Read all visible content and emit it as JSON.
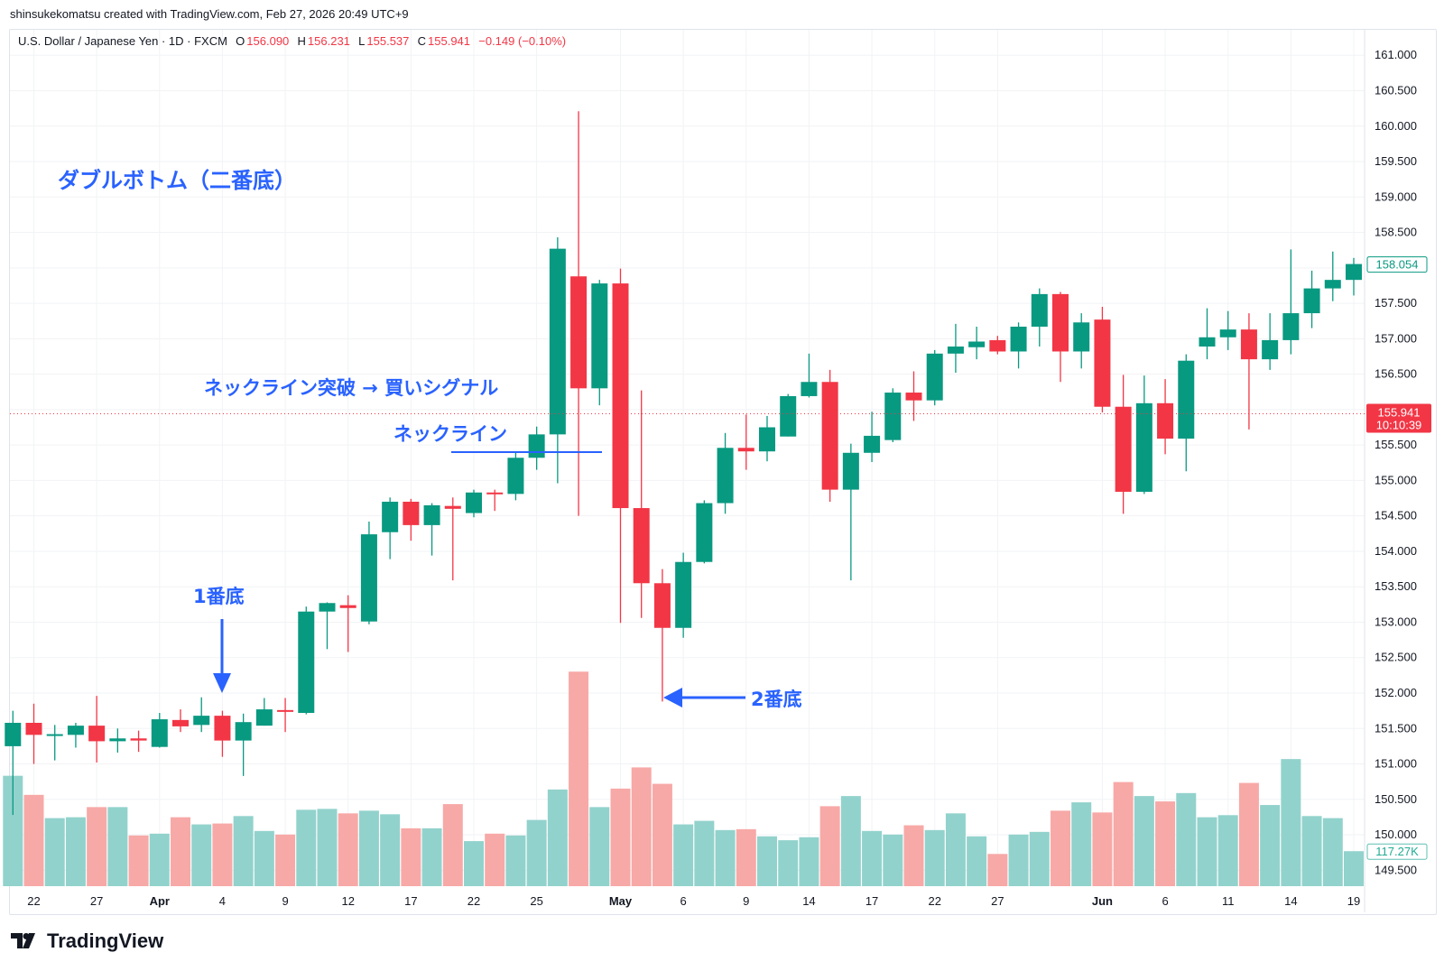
{
  "credit": "shinsukekomatsu created with TradingView.com, Feb 27, 2026 20:49 UTC+9",
  "legend": {
    "symbol": "U.S. Dollar / Japanese Yen · 1D · FXCM",
    "open_label": "O",
    "open": "156.090",
    "high_label": "H",
    "high": "156.231",
    "low_label": "L",
    "low": "155.537",
    "close_label": "C",
    "close": "155.941",
    "change": "−0.149 (−0.10%)"
  },
  "annotations": {
    "title": "ダブルボトム（二番底）",
    "breakout": "ネックライン突破 → 買いシグナル",
    "neckline": "ネックライン",
    "first_bottom": "1番底",
    "second_bottom": "2番底"
  },
  "logo": "TradingView",
  "colors": {
    "up": "#089981",
    "down": "#f23645",
    "vol_up": "#92d2cc",
    "vol_down": "#f7a9a7",
    "annotation": "#2962ff"
  },
  "chart_data": {
    "type": "candlestick",
    "price_axis": {
      "min": 149.5,
      "max": 161.0,
      "step": 0.5,
      "labels": [
        "161.000",
        "160.500",
        "160.000",
        "159.500",
        "159.000",
        "158.500",
        "158.000",
        "157.500",
        "157.000",
        "156.500",
        "156.000",
        "155.500",
        "155.000",
        "154.500",
        "154.000",
        "153.500",
        "153.000",
        "152.500",
        "152.000",
        "151.500",
        "151.000",
        "150.500",
        "150.000",
        "149.500"
      ]
    },
    "last_price_label": "158.054",
    "current_price": {
      "value": "155.941",
      "countdown": "10:10:39"
    },
    "last_volume_label": "117.27K",
    "neckline_price": 155.4,
    "grid": true,
    "x_ticks": [
      {
        "date": "Mar 22",
        "label": "22",
        "bold": false
      },
      {
        "date": "Mar 27",
        "label": "27",
        "bold": false
      },
      {
        "date": "Apr 1",
        "label": "Apr",
        "bold": true
      },
      {
        "date": "Apr 4",
        "label": "4",
        "bold": false
      },
      {
        "date": "Apr 9",
        "label": "9",
        "bold": false
      },
      {
        "date": "Apr 12",
        "label": "12",
        "bold": false
      },
      {
        "date": "Apr 17",
        "label": "17",
        "bold": false
      },
      {
        "date": "Apr 22",
        "label": "22",
        "bold": false
      },
      {
        "date": "Apr 25",
        "label": "25",
        "bold": false
      },
      {
        "date": "May 1",
        "label": "May",
        "bold": true
      },
      {
        "date": "May 6",
        "label": "6",
        "bold": false
      },
      {
        "date": "May 9",
        "label": "9",
        "bold": false
      },
      {
        "date": "May 14",
        "label": "14",
        "bold": false
      },
      {
        "date": "May 17",
        "label": "17",
        "bold": false
      },
      {
        "date": "May 22",
        "label": "22",
        "bold": false
      },
      {
        "date": "May 27",
        "label": "27",
        "bold": false
      },
      {
        "date": "Jun 3",
        "label": "Jun",
        "bold": true
      },
      {
        "date": "Jun 6",
        "label": "6",
        "bold": false
      },
      {
        "date": "Jun 11",
        "label": "11",
        "bold": false
      },
      {
        "date": "Jun 14",
        "label": "14",
        "bold": false
      },
      {
        "date": "Jun 19",
        "label": "19",
        "bold": false
      }
    ],
    "columns": [
      "date",
      "open",
      "high",
      "low",
      "close",
      "volume_k"
    ],
    "candles": [
      [
        "Mar 21",
        151.25,
        151.75,
        150.28,
        151.58,
        370
      ],
      [
        "Mar 22",
        151.58,
        151.85,
        151.0,
        151.41,
        306
      ],
      [
        "Mar 25",
        151.4,
        151.55,
        151.05,
        151.42,
        228
      ],
      [
        "Mar 26",
        151.41,
        151.58,
        151.23,
        151.54,
        231
      ],
      [
        "Mar 27",
        151.54,
        151.96,
        151.02,
        151.32,
        265
      ],
      [
        "Mar 28",
        151.32,
        151.5,
        151.16,
        151.36,
        265
      ],
      [
        "Mar 29",
        151.36,
        151.47,
        151.17,
        151.33,
        170
      ],
      [
        "Apr 1",
        151.24,
        151.72,
        151.23,
        151.63,
        176
      ],
      [
        "Apr 2",
        151.62,
        151.77,
        151.45,
        151.53,
        231
      ],
      [
        "Apr 3",
        151.55,
        151.94,
        151.45,
        151.68,
        207
      ],
      [
        "Apr 4",
        151.68,
        151.75,
        151.1,
        151.33,
        210
      ],
      [
        "Apr 5",
        151.33,
        151.71,
        150.83,
        151.59,
        235
      ],
      [
        "Apr 8",
        151.54,
        151.93,
        151.54,
        151.77,
        185
      ],
      [
        "Apr 9",
        151.76,
        151.93,
        151.45,
        151.74,
        173
      ],
      [
        "Apr 10",
        151.72,
        153.22,
        151.7,
        153.15,
        256
      ],
      [
        "Apr 11",
        153.15,
        153.28,
        152.62,
        153.27,
        259
      ],
      [
        "Apr 12",
        153.24,
        153.38,
        152.58,
        153.2,
        244
      ],
      [
        "Apr 15",
        153.01,
        154.42,
        152.97,
        154.24,
        253
      ],
      [
        "Apr 16",
        154.27,
        154.76,
        153.89,
        154.7,
        241
      ],
      [
        "Apr 17",
        154.7,
        154.74,
        154.15,
        154.37,
        194
      ],
      [
        "Apr 18",
        154.37,
        154.68,
        153.94,
        154.65,
        194
      ],
      [
        "Apr 19",
        154.64,
        154.76,
        153.59,
        154.6,
        275
      ],
      [
        "Apr 22",
        154.54,
        154.87,
        154.48,
        154.83,
        151
      ],
      [
        "Apr 23",
        154.83,
        154.87,
        154.57,
        154.81,
        176
      ],
      [
        "Apr 24",
        154.81,
        155.4,
        154.72,
        155.32,
        170
      ],
      [
        "Apr 25",
        155.32,
        155.76,
        155.15,
        155.65,
        222
      ],
      [
        "Apr 26",
        155.65,
        158.43,
        154.96,
        158.27,
        324
      ],
      [
        "Apr 29",
        157.88,
        160.21,
        154.5,
        156.3,
        719
      ],
      [
        "Apr 30",
        156.3,
        157.83,
        156.06,
        157.78,
        265
      ],
      [
        "May 1",
        157.78,
        157.99,
        152.99,
        154.61,
        327
      ],
      [
        "May 2",
        154.61,
        156.27,
        153.06,
        153.55,
        398
      ],
      [
        "May 3",
        153.55,
        153.75,
        151.88,
        152.92,
        343
      ],
      [
        "May 6",
        152.92,
        153.98,
        152.78,
        153.85,
        207
      ],
      [
        "May 7",
        153.85,
        154.72,
        153.83,
        154.68,
        219
      ],
      [
        "May 8",
        154.68,
        155.67,
        154.53,
        155.46,
        188
      ],
      [
        "May 9",
        155.46,
        155.93,
        155.15,
        155.41,
        191
      ],
      [
        "May 10",
        155.41,
        155.91,
        155.27,
        155.75,
        167
      ],
      [
        "May 13",
        155.62,
        156.22,
        155.62,
        156.19,
        154
      ],
      [
        "May 14",
        156.19,
        156.79,
        156.17,
        156.39,
        164
      ],
      [
        "May 15",
        156.39,
        156.56,
        154.7,
        154.87,
        268
      ],
      [
        "May 16",
        154.87,
        155.52,
        153.59,
        155.39,
        302
      ],
      [
        "May 17",
        155.39,
        155.97,
        155.26,
        155.63,
        185
      ],
      [
        "May 20",
        155.57,
        156.3,
        155.54,
        156.24,
        173
      ],
      [
        "May 21",
        156.24,
        156.54,
        155.84,
        156.13,
        204
      ],
      [
        "May 22",
        156.13,
        156.84,
        156.06,
        156.79,
        188
      ],
      [
        "May 23",
        156.79,
        157.21,
        156.52,
        156.89,
        244
      ],
      [
        "May 24",
        156.88,
        157.17,
        156.71,
        156.96,
        167
      ],
      [
        "May 27",
        156.98,
        157.04,
        156.78,
        156.82,
        108
      ],
      [
        "May 28",
        156.82,
        157.23,
        156.58,
        157.17,
        173
      ],
      [
        "May 29",
        157.17,
        157.71,
        156.89,
        157.63,
        182
      ],
      [
        "May 30",
        157.63,
        157.66,
        156.39,
        156.82,
        253
      ],
      [
        "May 31",
        156.82,
        157.36,
        156.58,
        157.23,
        281
      ],
      [
        "Jun 3",
        157.27,
        157.45,
        155.96,
        156.04,
        247
      ],
      [
        "Jun 4",
        156.04,
        156.49,
        154.53,
        154.84,
        349
      ],
      [
        "Jun 5",
        154.84,
        156.48,
        154.81,
        156.09,
        302
      ],
      [
        "Jun 6",
        156.09,
        156.43,
        155.37,
        155.59,
        284
      ],
      [
        "Jun 7",
        155.59,
        156.78,
        155.13,
        156.69,
        312
      ],
      [
        "Jun 10",
        156.89,
        157.43,
        156.71,
        157.02,
        231
      ],
      [
        "Jun 11",
        157.02,
        157.39,
        156.84,
        157.13,
        238
      ],
      [
        "Jun 12",
        157.13,
        157.36,
        155.72,
        156.71,
        346
      ],
      [
        "Jun 13",
        156.71,
        157.36,
        156.56,
        156.98,
        272
      ],
      [
        "Jun 14",
        156.98,
        158.26,
        156.78,
        157.36,
        426
      ],
      [
        "Jun 17",
        157.36,
        157.96,
        157.15,
        157.71,
        235
      ],
      [
        "Jun 18",
        157.71,
        158.23,
        157.53,
        157.83,
        228
      ],
      [
        "Jun 19",
        157.83,
        158.14,
        157.61,
        158.054,
        117.27
      ]
    ]
  }
}
